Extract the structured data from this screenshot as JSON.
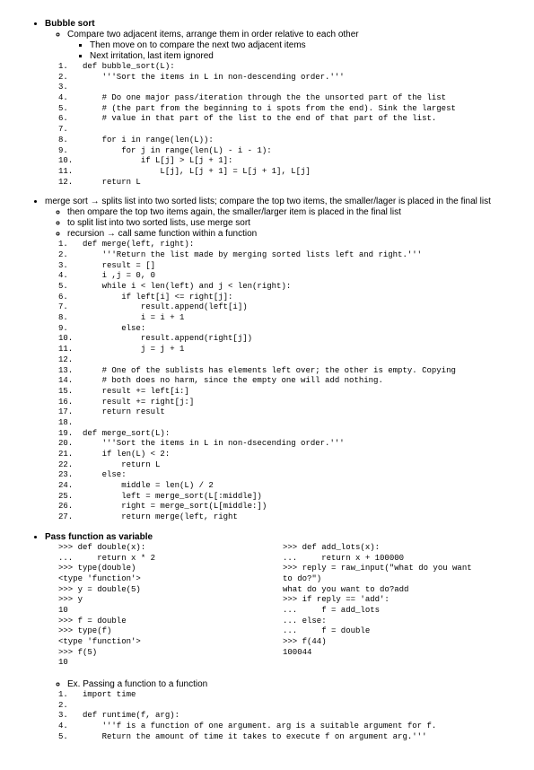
{
  "bubble": {
    "title": "Bubble sort",
    "sub1": "Compare two adjacent items, arrange them in order relative to each other",
    "sub2": "Then move on to compare the next two adjacent items",
    "sub3": "Next irritation, last item ignored",
    "code": "1.   def bubble_sort(L):\n2.       '''Sort the items in L in non-descending order.'''\n3.\n4.       # Do one major pass/iteration through the the unsorted part of the list\n5.       # (the part from the beginning to i spots from the end). Sink the largest\n6.       # value in that part of the list to the end of that part of the list.\n7.\n8.       for i in range(len(L)):\n9.           for j in range(len(L) - i - 1):\n10.              if L[j] > L[j + 1]:\n11.                  L[j], L[j + 1] = L[j + 1], L[j]\n12.      return L"
  },
  "merge": {
    "title": "merge sort → splits list into two sorted lists; compare the top two items, the smaller/lager is placed in the final list",
    "sub1": "then ompare the top two items again, the smaller/larger item is placed in the final list",
    "sub2": "to split list into two sorted lists, use merge sort",
    "sub3": "recursion → call same function within a function",
    "code": "1.   def merge(left, right):\n2.       '''Return the list made by merging sorted lists left and right.'''\n3.       result = []\n4.       i ,j = 0, 0\n5.       while i < len(left) and j < len(right):\n6.           if left[i] <= right[j]:\n7.               result.append(left[i])\n8.               i = i + 1\n9.           else:\n10.              result.append(right[j])\n11.              j = j + 1\n12.\n13.      # One of the sublists has elements left over; the other is empty. Copying\n14.      # both does no harm, since the empty one will add nothing.\n15.      result += left[i:]\n16.      result += right[j:]\n17.      return result\n18.\n19.  def merge_sort(L):\n20.      '''Sort the items in L in non-dsecending order.'''\n21.      if len(L) < 2:\n22.          return L\n23.      else:\n24.          middle = len(L) / 2\n25.          left = merge_sort(L[:middle])\n26.          right = merge_sort(L[middle:])\n27.          return merge(left, right"
  },
  "passfn": {
    "title": "Pass function as variable",
    "left": ">>> def double(x):\n...     return x * 2\n>>> type(double)\n<type 'function'>\n>>> y = double(5)\n>>> y\n10\n>>> f = double\n>>> type(f)\n<type 'function'>\n>>> f(5)\n10",
    "right": ">>> def add_lots(x):\n...     return x + 100000\n>>> reply = raw_input(\"what do you want\nto do?\")\nwhat do you want to do?add\n>>> if reply == 'add':\n...     f = add_lots\n... else:\n...     f = double\n>>> f(44)\n100044",
    "ex": "Ex. Passing a function to a function",
    "code2": "1.   import time\n2.\n3.   def runtime(f, arg):\n4.       '''f is a function of one argument. arg is a suitable argument for f.\n5.       Return the amount of time it takes to execute f on argument arg.'''"
  }
}
